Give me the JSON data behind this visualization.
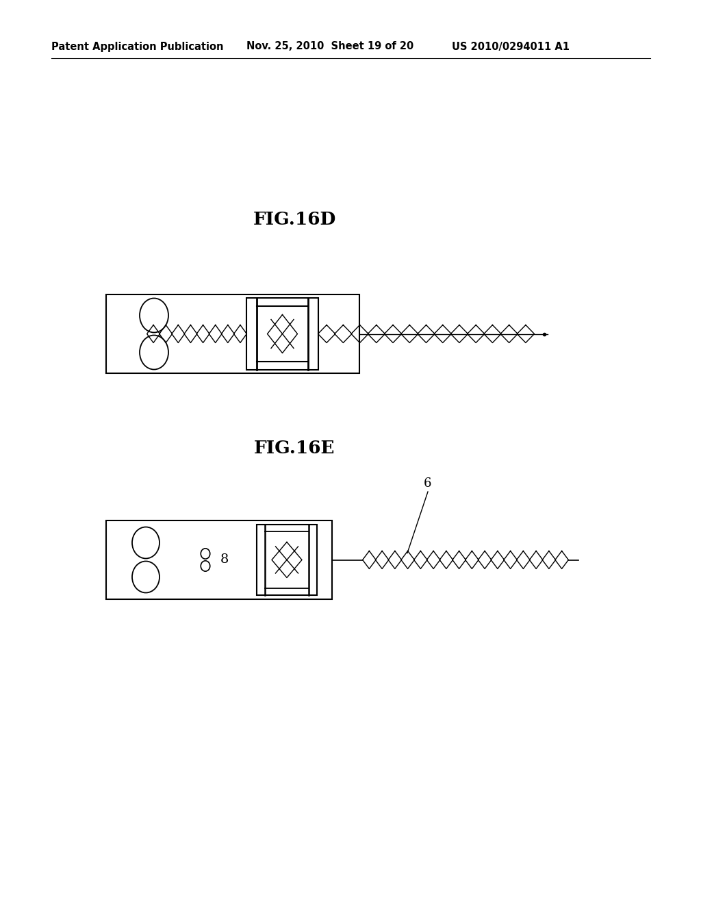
{
  "bg_color": "#ffffff",
  "header_left": "Patent Application Publication",
  "header_mid": "Nov. 25, 2010  Sheet 19 of 20",
  "header_right": "US 2010/0294011 A1",
  "fig16d_label": "FIG.16D",
  "fig16e_label": "FIG.16E",
  "label6_text": "6",
  "label8_text": "8"
}
